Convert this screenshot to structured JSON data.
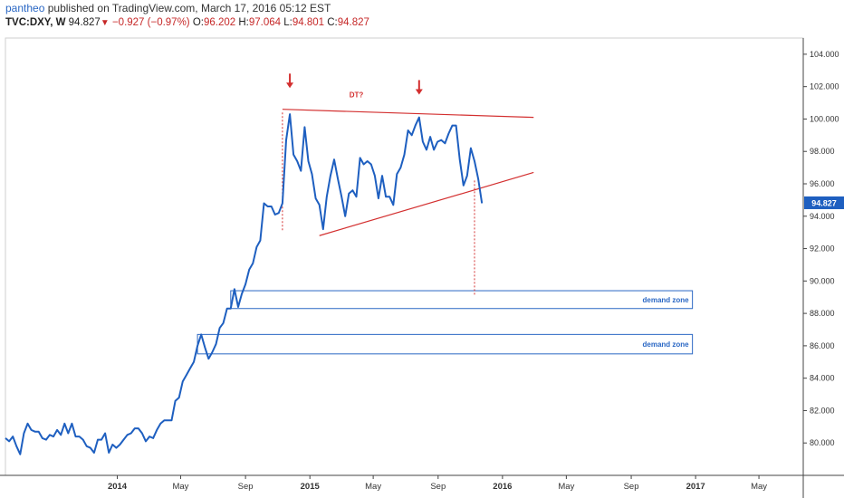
{
  "header": {
    "user": "pantheo",
    "published": " published on TradingView.com, March 17, 2016 05:12 EST",
    "symbol": "TVC:DXY, W",
    "last": "94.827",
    "arrow": "▼",
    "change": "−0.927 (−0.97%)",
    "o_label": "O:",
    "o_value": "96.202",
    "h_label": "H:",
    "h_value": "97.064",
    "l_label": "L:",
    "l_value": "94.801",
    "c_label": "C:",
    "c_value": "94.827"
  },
  "colors": {
    "line": "#1e5fc0",
    "annotation": "#d32f2f",
    "zone": "#2a67c4",
    "grid": "#c8c8c8",
    "price_tag": "#1e5fc0"
  },
  "chart_data": {
    "type": "line",
    "title": "",
    "xlabel": "",
    "ylabel": "",
    "ylim": [
      78,
      105
    ],
    "xlim": [
      "2013-06-03",
      "2017-07-24"
    ],
    "y_ticks": [
      "80.000",
      "82.000",
      "84.000",
      "86.000",
      "88.000",
      "90.000",
      "92.000",
      "94.000",
      "96.000",
      "98.000",
      "100.000",
      "102.000",
      "104.000"
    ],
    "x_ticks": [
      {
        "label": "2014",
        "date": "2014-01-01",
        "bold": true
      },
      {
        "label": "May",
        "date": "2014-05-01",
        "bold": false
      },
      {
        "label": "Sep",
        "date": "2014-09-01",
        "bold": false
      },
      {
        "label": "2015",
        "date": "2015-01-01",
        "bold": true
      },
      {
        "label": "May",
        "date": "2015-05-01",
        "bold": false
      },
      {
        "label": "Sep",
        "date": "2015-09-01",
        "bold": false
      },
      {
        "label": "2016",
        "date": "2016-01-01",
        "bold": true
      },
      {
        "label": "May",
        "date": "2016-05-01",
        "bold": false
      },
      {
        "label": "Sep",
        "date": "2016-09-01",
        "bold": false
      },
      {
        "label": "2017",
        "date": "2017-01-01",
        "bold": true
      },
      {
        "label": "May",
        "date": "2017-05-01",
        "bold": false
      }
    ],
    "last_price_label": "94.827",
    "series": [
      {
        "values": [
          [
            "2013-06-03",
            80.3
          ],
          [
            "2013-06-10",
            80.1
          ],
          [
            "2013-06-17",
            80.4
          ],
          [
            "2013-06-24",
            79.8
          ],
          [
            "2013-07-01",
            79.3
          ],
          [
            "2013-07-08",
            80.6
          ],
          [
            "2013-07-15",
            81.2
          ],
          [
            "2013-07-22",
            80.8
          ],
          [
            "2013-07-29",
            80.7
          ],
          [
            "2013-08-05",
            80.7
          ],
          [
            "2013-08-12",
            80.3
          ],
          [
            "2013-08-19",
            80.2
          ],
          [
            "2013-08-26",
            80.5
          ],
          [
            "2013-09-02",
            80.4
          ],
          [
            "2013-09-09",
            80.8
          ],
          [
            "2013-09-16",
            80.5
          ],
          [
            "2013-09-23",
            81.2
          ],
          [
            "2013-09-30",
            80.6
          ],
          [
            "2013-10-07",
            81.2
          ],
          [
            "2013-10-14",
            80.4
          ],
          [
            "2013-10-21",
            80.4
          ],
          [
            "2013-10-28",
            80.2
          ],
          [
            "2013-11-04",
            79.8
          ],
          [
            "2013-11-11",
            79.7
          ],
          [
            "2013-11-18",
            79.4
          ],
          [
            "2013-11-25",
            80.2
          ],
          [
            "2013-12-02",
            80.2
          ],
          [
            "2013-12-09",
            80.6
          ],
          [
            "2013-12-16",
            79.4
          ],
          [
            "2013-12-23",
            79.9
          ],
          [
            "2013-12-30",
            79.7
          ],
          [
            "2014-01-06",
            79.9
          ],
          [
            "2014-01-13",
            80.2
          ],
          [
            "2014-01-20",
            80.5
          ],
          [
            "2014-01-27",
            80.6
          ],
          [
            "2014-02-03",
            80.9
          ],
          [
            "2014-02-10",
            80.9
          ],
          [
            "2014-02-17",
            80.6
          ],
          [
            "2014-02-24",
            80.1
          ],
          [
            "2014-03-03",
            80.4
          ],
          [
            "2014-03-10",
            80.3
          ],
          [
            "2014-03-17",
            80.8
          ],
          [
            "2014-03-24",
            81.2
          ],
          [
            "2014-03-31",
            81.4
          ],
          [
            "2014-04-07",
            81.4
          ],
          [
            "2014-04-14",
            81.4
          ],
          [
            "2014-04-21",
            82.6
          ],
          [
            "2014-04-28",
            82.8
          ],
          [
            "2014-05-05",
            83.8
          ],
          [
            "2014-05-12",
            84.2
          ],
          [
            "2014-05-19",
            84.6
          ],
          [
            "2014-05-26",
            85.0
          ],
          [
            "2014-06-02",
            86.0
          ],
          [
            "2014-06-09",
            86.7
          ],
          [
            "2014-06-16",
            85.9
          ],
          [
            "2014-06-23",
            85.2
          ],
          [
            "2014-06-30",
            85.6
          ],
          [
            "2014-07-07",
            86.1
          ],
          [
            "2014-07-14",
            87.1
          ],
          [
            "2014-07-21",
            87.4
          ],
          [
            "2014-07-28",
            88.3
          ],
          [
            "2014-08-04",
            88.3
          ],
          [
            "2014-08-11",
            89.5
          ],
          [
            "2014-08-18",
            88.4
          ],
          [
            "2014-08-25",
            89.2
          ],
          [
            "2014-09-01",
            89.8
          ],
          [
            "2014-09-08",
            90.7
          ],
          [
            "2014-09-15",
            91.1
          ],
          [
            "2014-09-22",
            92.1
          ],
          [
            "2014-09-29",
            92.5
          ],
          [
            "2014-10-06",
            94.8
          ],
          [
            "2014-10-13",
            94.6
          ],
          [
            "2014-10-20",
            94.6
          ],
          [
            "2014-10-27",
            94.1
          ],
          [
            "2014-11-03",
            94.2
          ],
          [
            "2014-11-10",
            94.8
          ],
          [
            "2014-11-17",
            98.7
          ],
          [
            "2014-11-24",
            100.3
          ],
          [
            "2014-12-01",
            97.8
          ],
          [
            "2014-12-08",
            97.4
          ],
          [
            "2014-12-15",
            96.8
          ],
          [
            "2014-12-22",
            99.5
          ],
          [
            "2014-12-29",
            97.4
          ],
          [
            "2015-01-05",
            96.6
          ],
          [
            "2015-01-12",
            95.1
          ],
          [
            "2015-01-19",
            94.7
          ],
          [
            "2015-01-26",
            93.2
          ],
          [
            "2015-02-02",
            95.2
          ],
          [
            "2015-02-09",
            96.5
          ],
          [
            "2015-02-16",
            97.5
          ],
          [
            "2015-02-23",
            96.3
          ],
          [
            "2015-03-02",
            95.2
          ],
          [
            "2015-03-09",
            94.0
          ],
          [
            "2015-03-16",
            95.4
          ],
          [
            "2015-03-23",
            95.6
          ],
          [
            "2015-03-30",
            95.2
          ],
          [
            "2015-04-06",
            97.6
          ],
          [
            "2015-04-13",
            97.2
          ],
          [
            "2015-04-20",
            97.4
          ],
          [
            "2015-04-27",
            97.2
          ],
          [
            "2015-05-04",
            96.5
          ],
          [
            "2015-05-11",
            95.1
          ],
          [
            "2015-05-18",
            96.5
          ],
          [
            "2015-05-25",
            95.2
          ],
          [
            "2015-06-01",
            95.2
          ],
          [
            "2015-06-08",
            94.7
          ],
          [
            "2015-06-15",
            96.6
          ],
          [
            "2015-06-22",
            97.0
          ],
          [
            "2015-06-29",
            97.8
          ],
          [
            "2015-07-06",
            99.3
          ],
          [
            "2015-07-13",
            99.0
          ],
          [
            "2015-07-20",
            99.6
          ],
          [
            "2015-07-27",
            100.1
          ],
          [
            "2015-08-03",
            98.6
          ],
          [
            "2015-08-10",
            98.1
          ],
          [
            "2015-08-17",
            98.9
          ],
          [
            "2015-08-24",
            98.1
          ],
          [
            "2015-08-31",
            98.6
          ],
          [
            "2015-09-07",
            98.7
          ],
          [
            "2015-09-14",
            98.5
          ],
          [
            "2015-09-21",
            99.1
          ],
          [
            "2015-09-28",
            99.6
          ],
          [
            "2015-10-05",
            99.6
          ],
          [
            "2015-10-12",
            97.5
          ],
          [
            "2015-10-19",
            95.9
          ],
          [
            "2015-10-26",
            96.5
          ],
          [
            "2015-11-02",
            98.2
          ],
          [
            "2015-11-09",
            97.4
          ],
          [
            "2015-11-16",
            96.3
          ],
          [
            "2015-11-23",
            94.8
          ]
        ]
      }
    ],
    "annotations": [
      {
        "kind": "trendline",
        "from": [
          "2014-11-10",
          100.6
        ],
        "to": [
          "2016-02-29",
          100.1
        ]
      },
      {
        "kind": "trendline",
        "from": [
          "2015-01-19",
          92.8
        ],
        "to": [
          "2016-02-29",
          96.7
        ]
      },
      {
        "kind": "dotted_vertical",
        "date": "2014-11-10",
        "from": 100.4,
        "to": 93.1
      },
      {
        "kind": "dotted_vertical",
        "date": "2015-11-09",
        "from": 96.2,
        "to": 89.1
      },
      {
        "kind": "arrow_down",
        "date": "2014-11-24",
        "y": 102.3
      },
      {
        "kind": "arrow_down",
        "date": "2015-07-27",
        "y": 101.9
      },
      {
        "kind": "text",
        "text": "DT?",
        "date": "2015-03-30",
        "y": 101.5
      }
    ],
    "zones": [
      {
        "label": "demand zone",
        "from_date": "2014-08-04",
        "to_date": "2016-12-26",
        "y_top": 89.4,
        "y_bottom": 88.3
      },
      {
        "label": "demand zone",
        "from_date": "2014-06-02",
        "to_date": "2016-12-26",
        "y_top": 86.7,
        "y_bottom": 85.5
      }
    ]
  }
}
